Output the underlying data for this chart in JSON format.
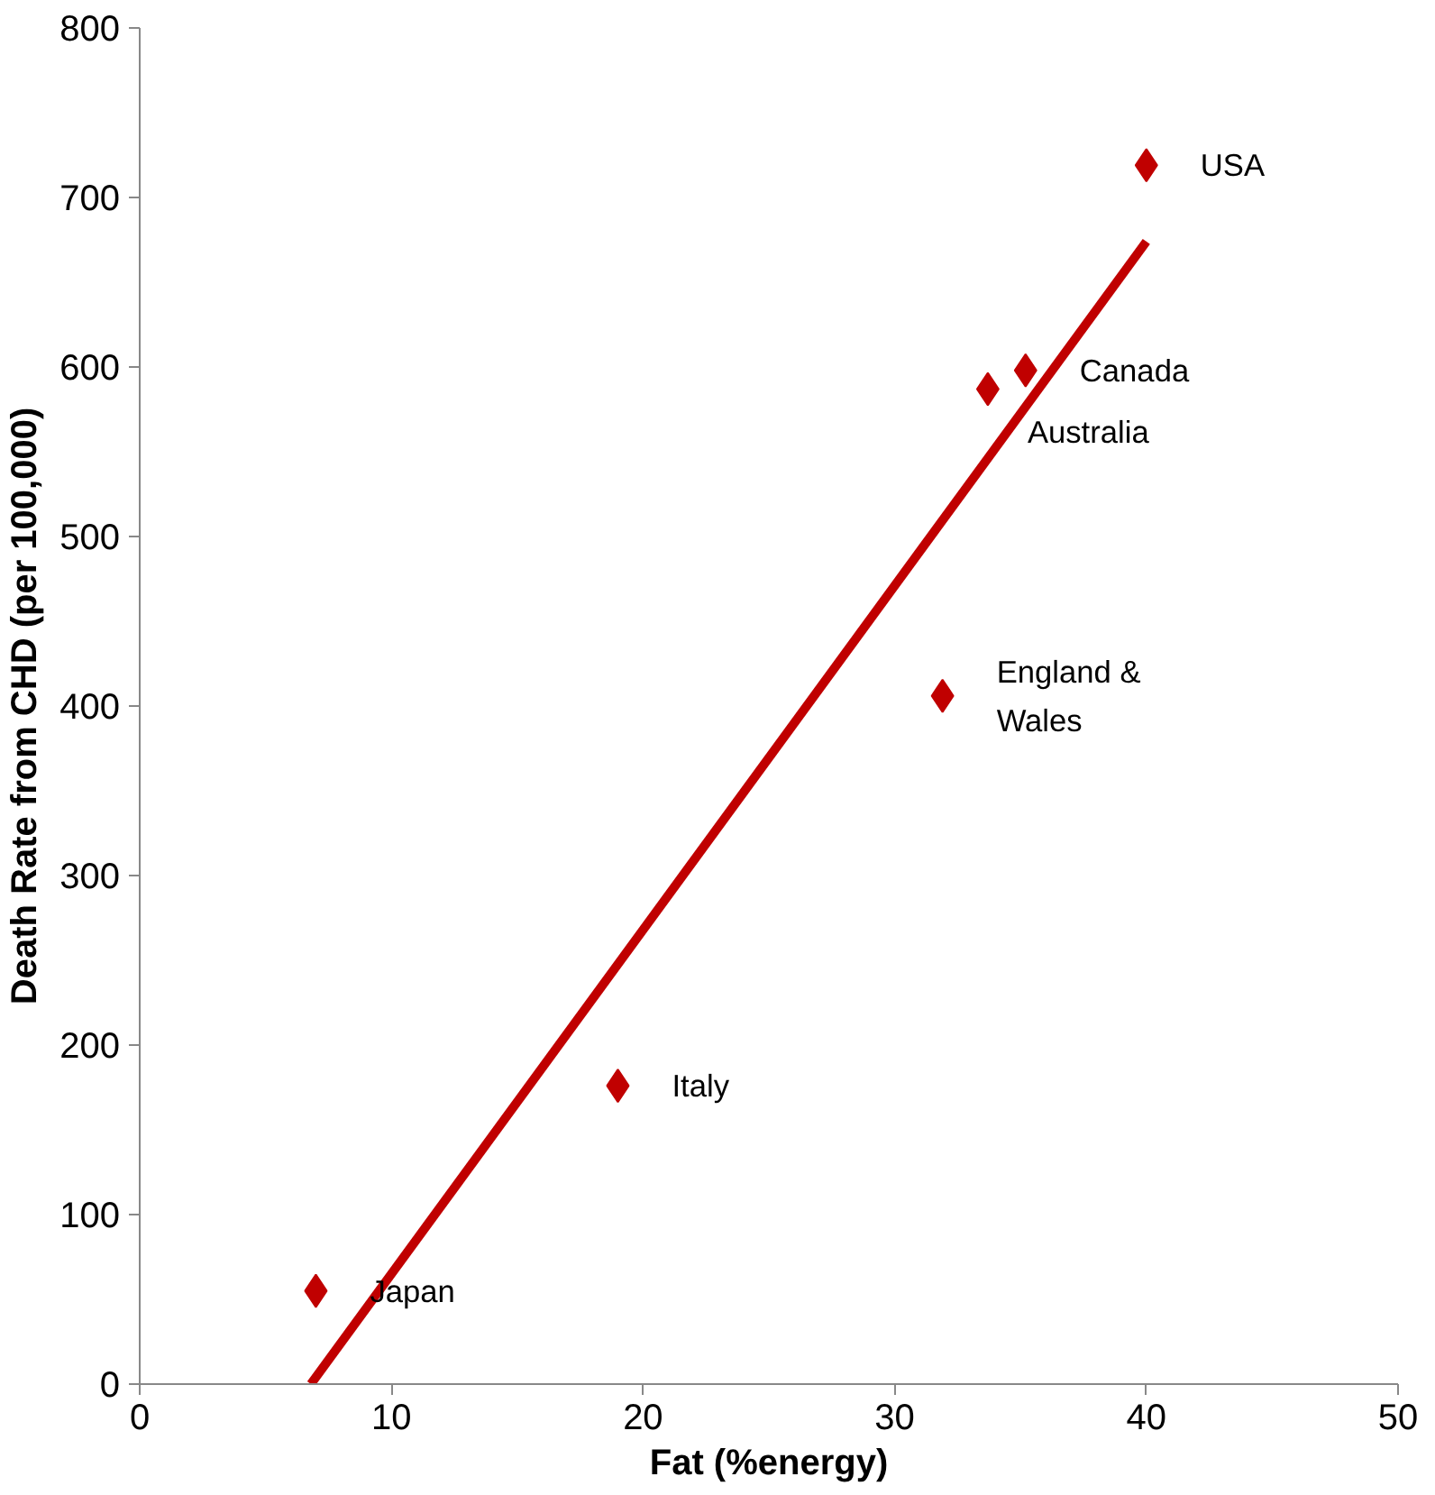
{
  "chart_data": {
    "type": "scatter",
    "xlabel": "Fat (%energy)",
    "ylabel": "Death Rate from CHD (per 100,000)",
    "xlim": [
      0,
      50
    ],
    "ylim": [
      0,
      800
    ],
    "xticks": [
      0,
      10,
      20,
      30,
      40,
      50
    ],
    "yticks": [
      0,
      100,
      200,
      300,
      400,
      500,
      600,
      700,
      800
    ],
    "grid": false,
    "marker": "diamond",
    "series": [
      {
        "color": "#c00000",
        "x": [
          7.0,
          19.0,
          31.9,
          33.7,
          35.2,
          40.0
        ],
        "values": [
          55,
          176,
          406,
          587,
          598,
          719
        ]
      },
      {
        "type": "line",
        "color": "#c00000",
        "x": [
          6.8,
          40.0
        ],
        "values": [
          0,
          674
        ],
        "line_style": "solid",
        "marker": "none"
      }
    ],
    "annotations": [
      {
        "text": "Japan",
        "x": 7.0,
        "y": 55
      },
      {
        "text": "Italy",
        "x": 19.0,
        "y": 176
      },
      {
        "text": "England &\nWales",
        "x": 31.9,
        "y": 406
      },
      {
        "text": "Australia",
        "x": 33.7,
        "y": 587
      },
      {
        "text": "Canada",
        "x": 35.2,
        "y": 598
      },
      {
        "text": "USA",
        "x": 40.0,
        "y": 719
      }
    ]
  }
}
